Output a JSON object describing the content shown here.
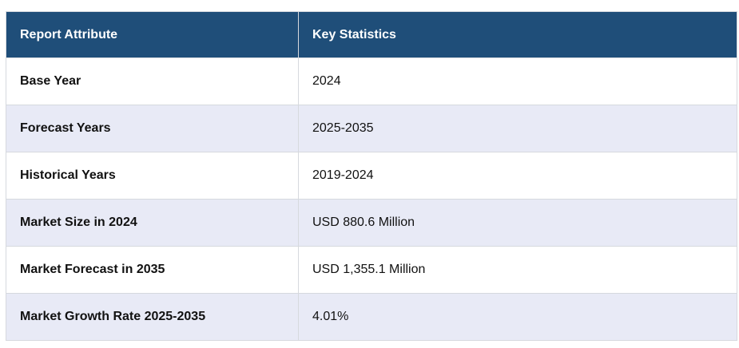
{
  "table": {
    "headers": [
      "Report Attribute",
      "Key Statistics"
    ],
    "rows": [
      [
        "Base Year",
        "2024"
      ],
      [
        "Forecast Years",
        "2025-2035"
      ],
      [
        "Historical Years",
        "2019-2024"
      ],
      [
        "Market Size in 2024",
        "USD 880.6 Million"
      ],
      [
        "Market Forecast in 2035",
        "USD 1,355.1 Million"
      ],
      [
        "Market Growth Rate 2025-2035",
        "4.01%"
      ]
    ]
  },
  "colors": {
    "header_bg": "#1f4e79",
    "header_text": "#ffffff",
    "row_alt_bg": "#e8eaf6",
    "border": "#d6d9de"
  }
}
